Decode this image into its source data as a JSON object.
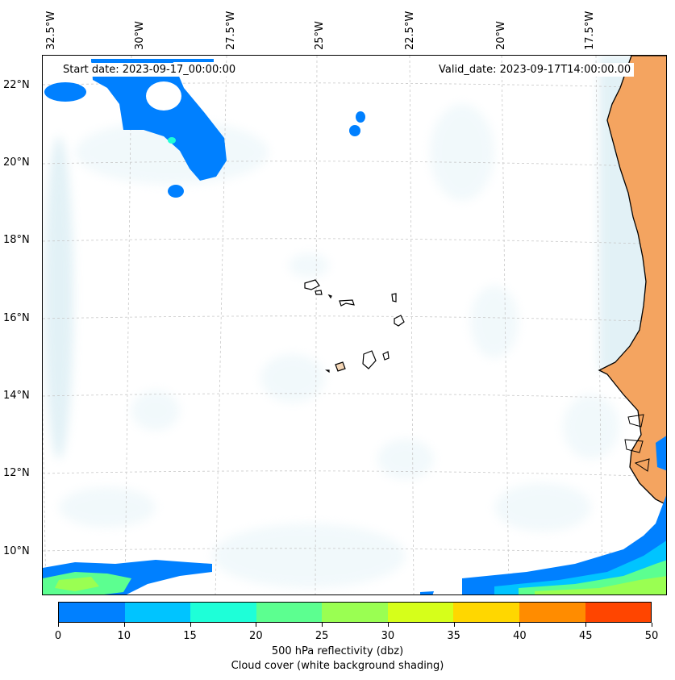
{
  "map": {
    "start_date": "Start date: 2023-09-17_00:00:00",
    "valid_date": "Valid_date: 2023-09-17T14:00:00.00",
    "lon_labels": [
      "32.5°W",
      "30°W",
      "27.5°W",
      "25°W",
      "22.5°W",
      "20°W",
      "17.5°W"
    ],
    "lat_labels": [
      "22°N",
      "20°N",
      "18°N",
      "16°N",
      "14°N",
      "12°N",
      "10°N"
    ],
    "colors": {
      "land": "#f4a460",
      "cloud": "#add8e6",
      "coastline": "#000000",
      "gridline": "#c8c8c8"
    }
  },
  "colorbar": {
    "ticks": [
      "0",
      "10",
      "15",
      "20",
      "25",
      "30",
      "35",
      "40",
      "45",
      "50"
    ],
    "colors": [
      "#0080ff",
      "#00c4ff",
      "#1effd8",
      "#5cff90",
      "#9aff52",
      "#d6ff1a",
      "#ffd700",
      "#ff8c00",
      "#ff4500"
    ],
    "label_line1": "500 hPa reflectivity (dbz)",
    "label_line2": "Cloud cover (white background shading)"
  }
}
